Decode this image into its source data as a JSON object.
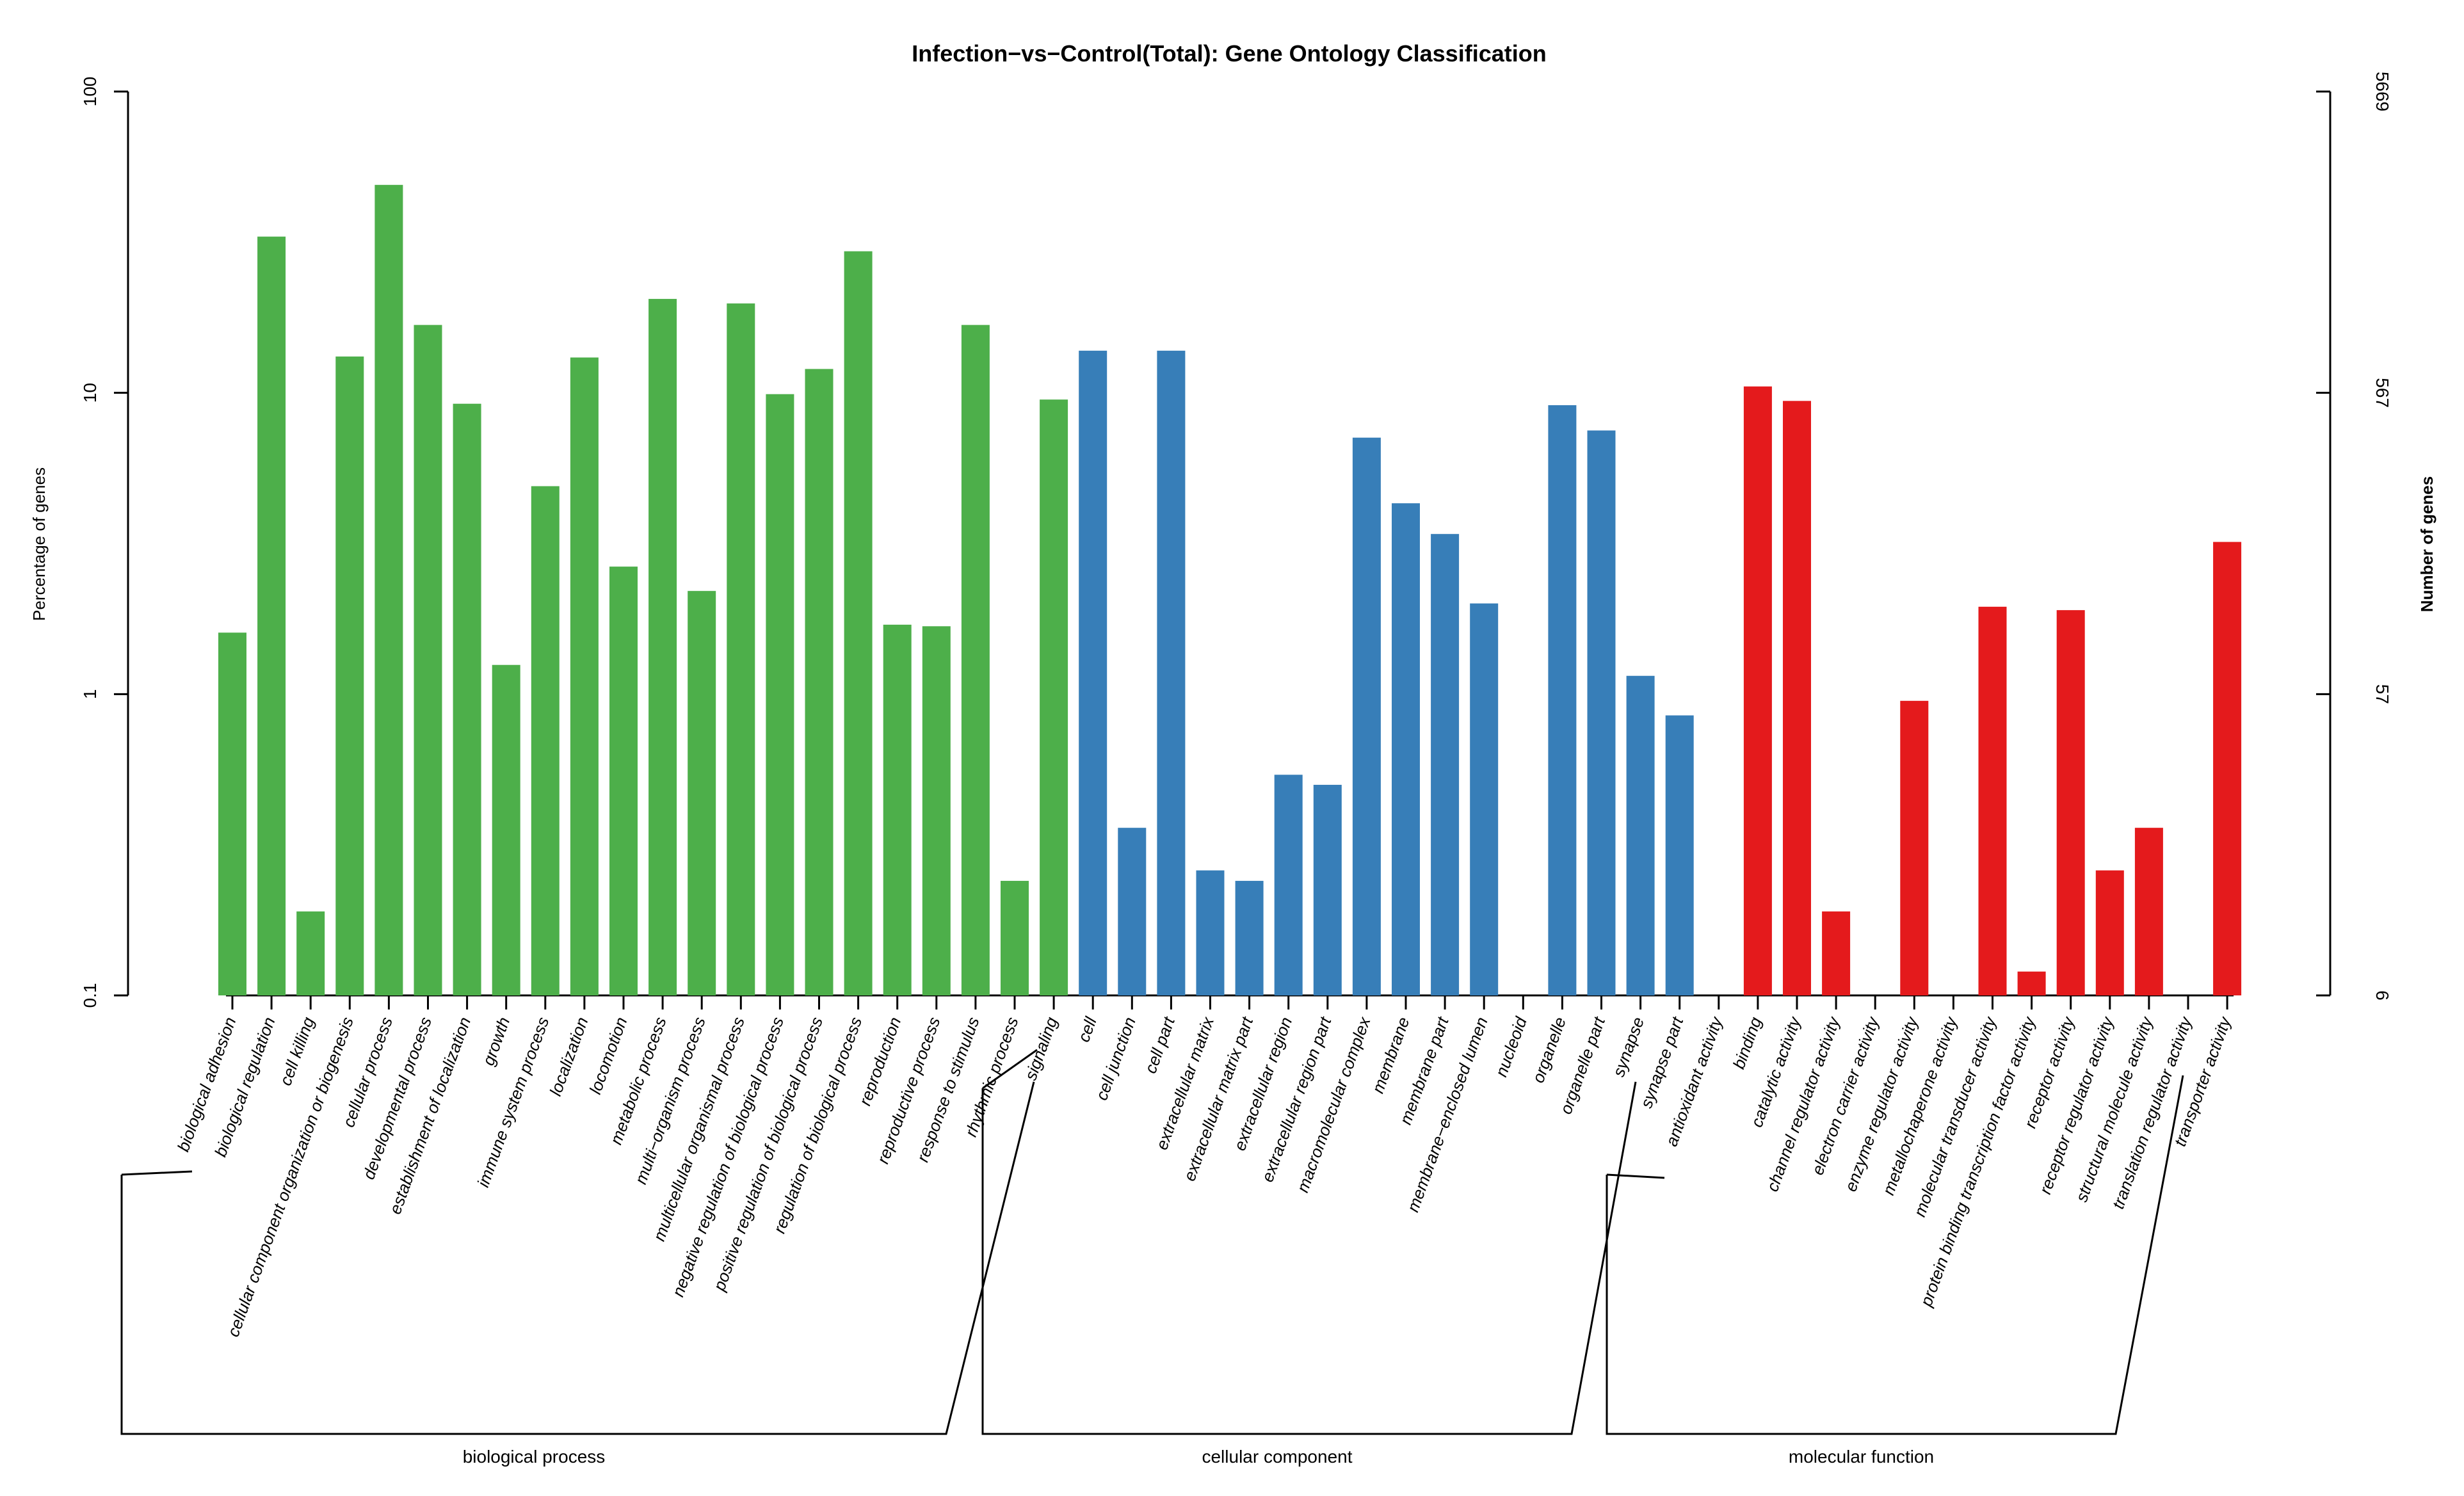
{
  "chart_data": {
    "type": "bar",
    "title": "Infection−vs−Control(Total): Gene Ontology Classification",
    "ylabel": "Percentage of genes",
    "y2label": "Number of genes",
    "yscale": "log",
    "ylim": [
      0.1,
      100
    ],
    "yticks": [
      "0.1",
      "1",
      "10",
      "100"
    ],
    "y2ticks": [
      "6",
      "57",
      "567",
      "5669"
    ],
    "groups": [
      {
        "name": "biological process",
        "color": "#4daf4a",
        "categories": [
          "biological adhesion",
          "biological regulation",
          "cell killing",
          "cellular component organization or biogenesis",
          "cellular process",
          "developmental process",
          "establishment of localization",
          "growth",
          "immune system process",
          "localization",
          "locomotion",
          "metabolic process",
          "multi−organism process",
          "multicellular organismal process",
          "negative regulation of biological process",
          "positive regulation of biological process",
          "regulation of biological process",
          "reproduction",
          "reproductive process",
          "response to stimulus",
          "rhythmic process",
          "signaling"
        ],
        "values": [
          1.6,
          33,
          0.19,
          13.2,
          49,
          16.8,
          9.2,
          1.25,
          4.9,
          13.1,
          2.65,
          20.5,
          2.2,
          19.8,
          9.9,
          12,
          29.5,
          1.7,
          1.68,
          16.8,
          0.24,
          9.5
        ]
      },
      {
        "name": "cellular component",
        "color": "#377eb8",
        "categories": [
          "cell",
          "cell junction",
          "cell part",
          "extracellular matrix",
          "extracellular matrix part",
          "extracellular region",
          "extracellular region part",
          "macromolecular complex",
          "membrane",
          "membrane part",
          "membrane−enclosed lumen",
          "nucleoid",
          "organelle",
          "organelle part",
          "synapse",
          "synapse part"
        ],
        "values": [
          13.8,
          0.36,
          13.8,
          0.26,
          0.24,
          0.54,
          0.5,
          7.1,
          4.3,
          3.4,
          2.0,
          null,
          9.1,
          7.5,
          1.15,
          0.85
        ]
      },
      {
        "name": "molecular function",
        "color": "#e41a1c",
        "categories": [
          "antioxidant activity",
          "binding",
          "catalytic activity",
          "channel regulator activity",
          "electron carrier activity",
          "enzyme regulator activity",
          "metallochaperone activity",
          "molecular transducer activity",
          "protein binding transcription factor activity",
          "receptor activity",
          "receptor regulator activity",
          "structural molecule activity",
          "translation regulator activity",
          "transporter activity"
        ],
        "values": [
          null,
          10.5,
          9.4,
          0.19,
          null,
          0.95,
          null,
          1.95,
          0.12,
          1.9,
          0.26,
          0.36,
          null,
          3.2
        ]
      }
    ]
  }
}
